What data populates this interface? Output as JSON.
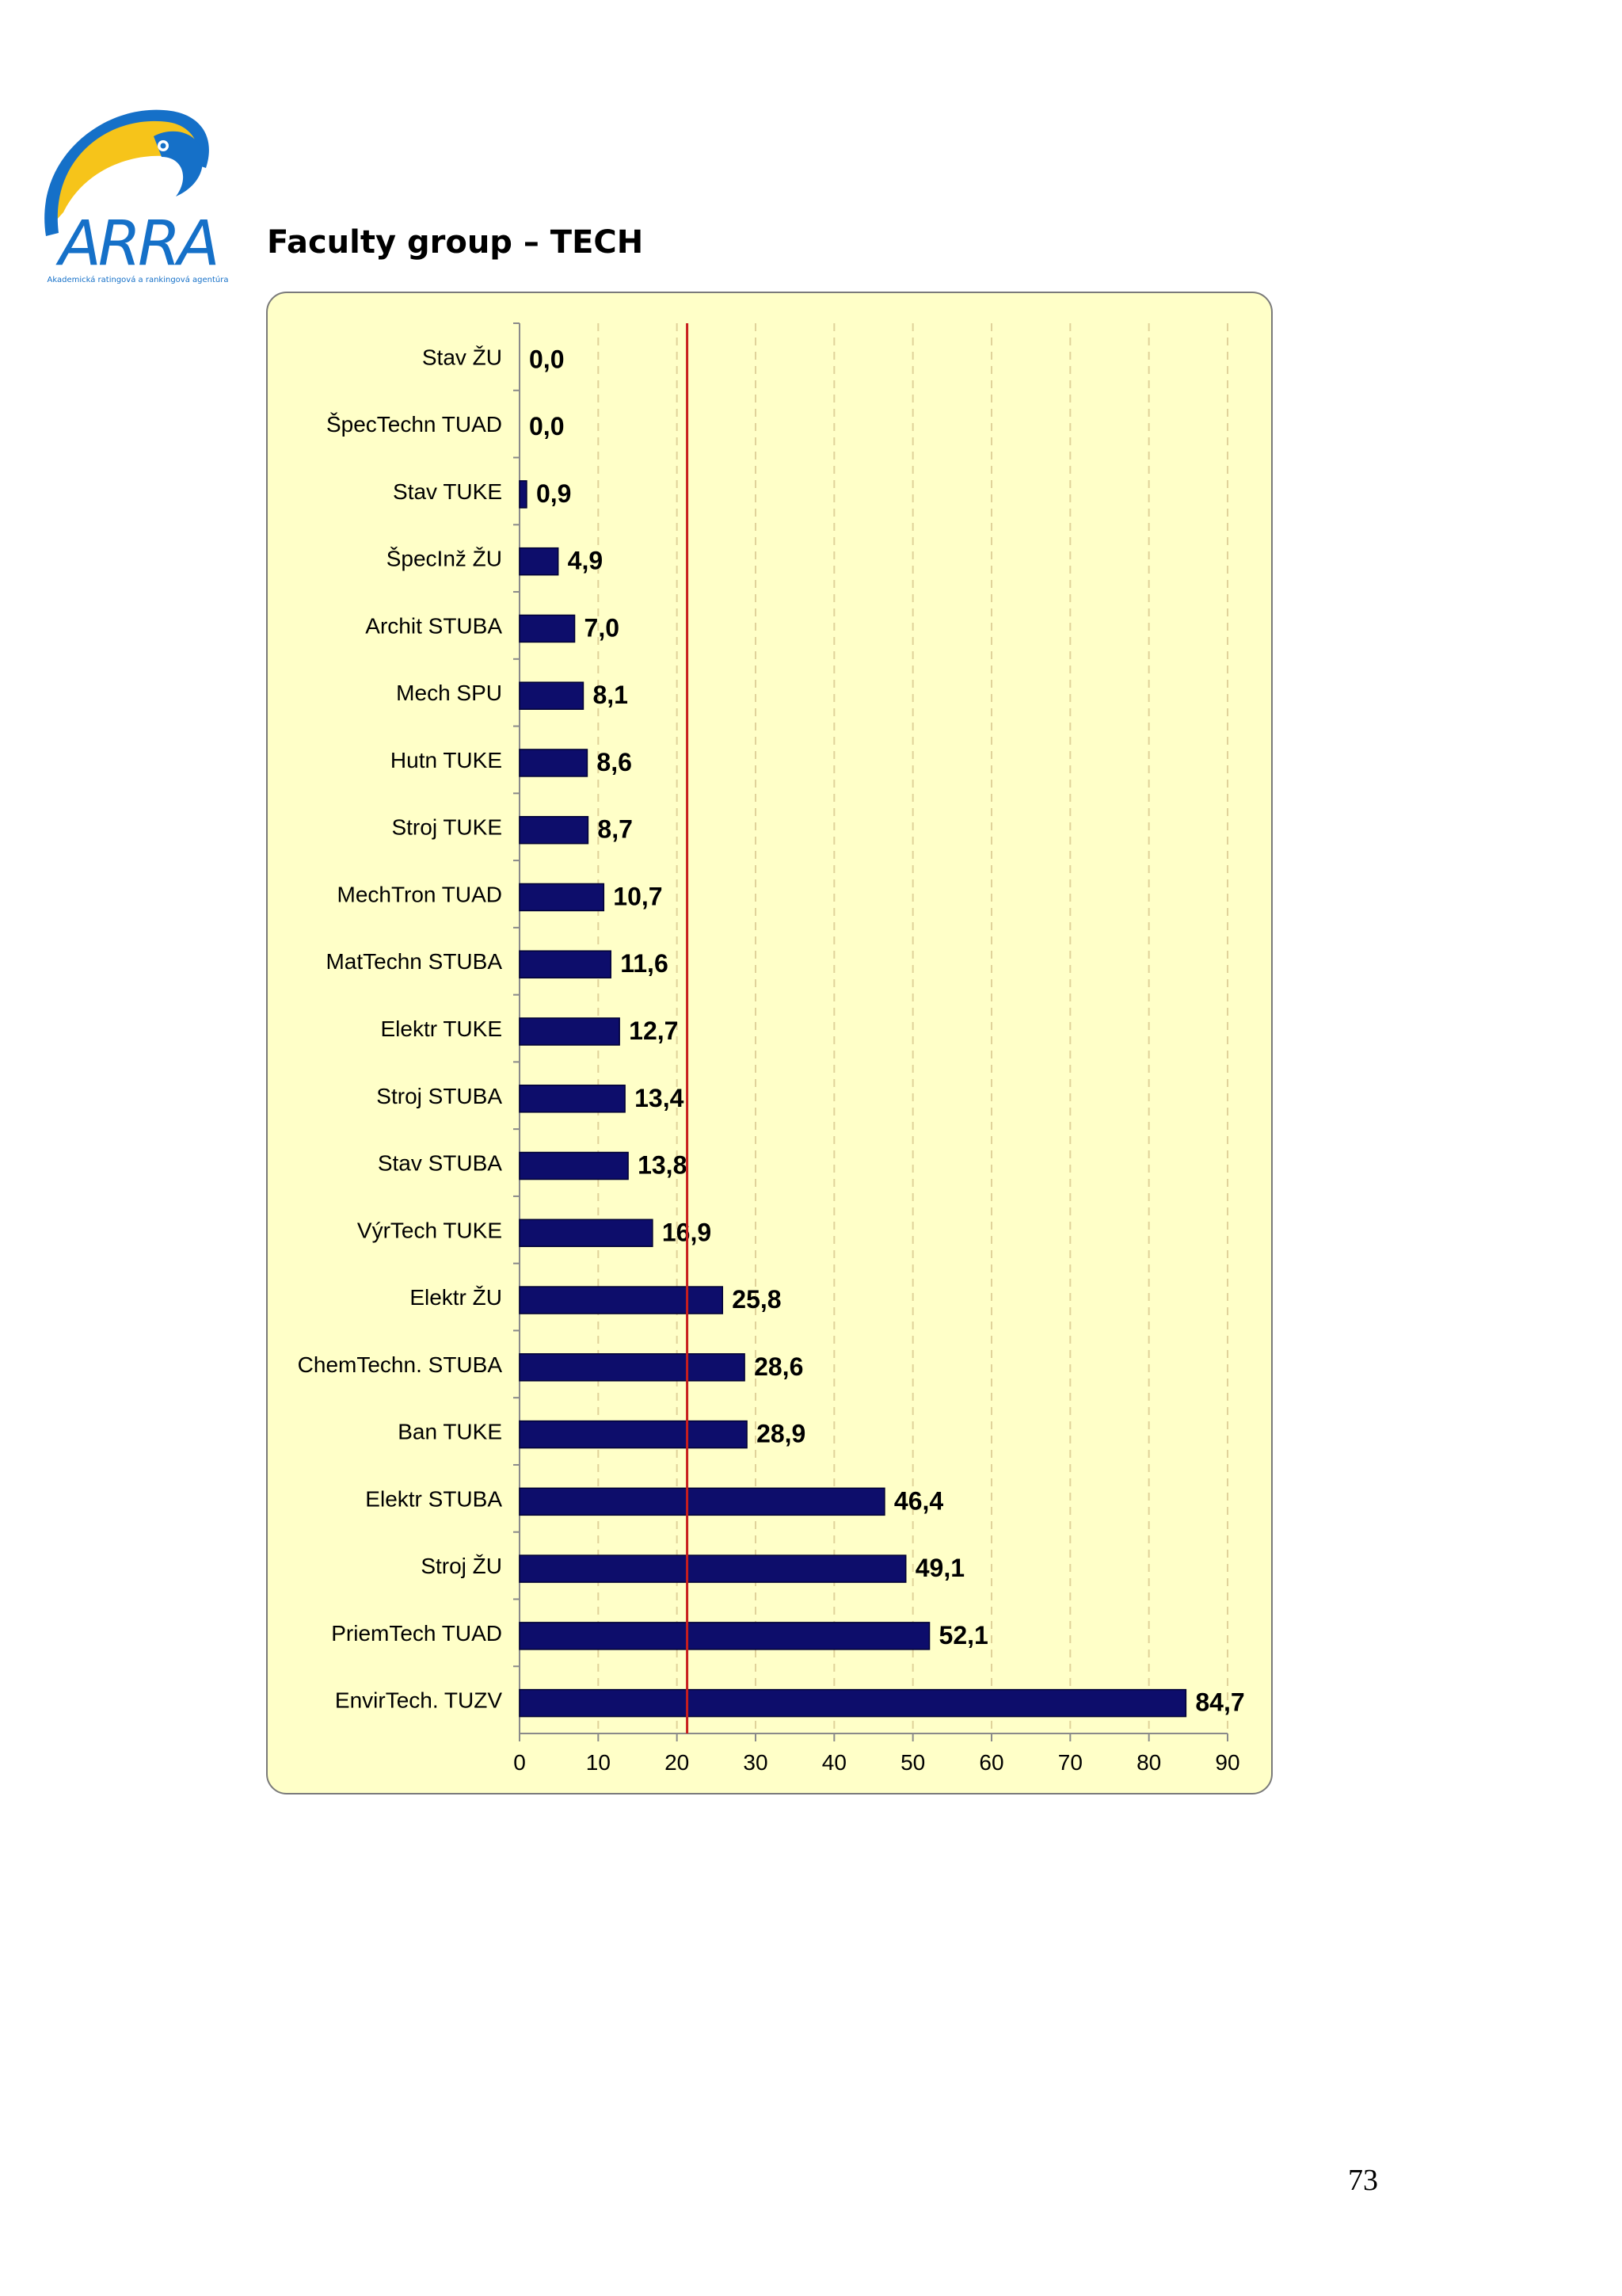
{
  "header": {
    "logo_text": "ARRA",
    "logo_subtitle": "Akademická ratingová a rankingová agentúra",
    "title": "Faculty group – TECH"
  },
  "page": {
    "number": "73"
  },
  "colors": {
    "bar_fill": "#0d0d6b",
    "reference_line": "#c81e1e",
    "plot_background": "#ffffc8",
    "logo_blue": "#1570c8",
    "logo_yellow": "#f6c41a"
  },
  "chart_data": {
    "type": "bar",
    "orientation": "horizontal",
    "categories": [
      "Stav ŽU",
      "ŠpecTechn TUAD",
      "Stav TUKE",
      "ŠpecInž ŽU",
      "Archit STUBA",
      "Mech SPU",
      "Hutn TUKE",
      "Stroj TUKE",
      "MechTron TUAD",
      "MatTechn STUBA",
      "Elektr TUKE",
      "Stroj STUBA",
      "Stav STUBA",
      "VýrTech TUKE",
      "Elektr ŽU",
      "ChemTechn. STUBA",
      "Ban TUKE",
      "Elektr STUBA",
      "Stroj ŽU",
      "PriemTech TUAD",
      "EnvirTech. TUZV"
    ],
    "values": [
      0.0,
      0.0,
      0.9,
      4.9,
      7.0,
      8.1,
      8.6,
      8.7,
      10.7,
      11.6,
      12.7,
      13.4,
      13.8,
      16.9,
      25.8,
      28.6,
      28.9,
      46.4,
      49.1,
      52.1,
      84.7
    ],
    "value_labels": [
      "0,0",
      "0,0",
      "0,9",
      "4,9",
      "7,0",
      "8,1",
      "8,6",
      "8,7",
      "10,7",
      "11,6",
      "12,7",
      "13,4",
      "13,8",
      "16,9",
      "25,8",
      "28,6",
      "28,9",
      "46,4",
      "49,1",
      "52,1",
      "84,7"
    ],
    "x_ticks": [
      0,
      10,
      20,
      30,
      40,
      50,
      60,
      70,
      80,
      90
    ],
    "xlim": [
      0,
      90
    ],
    "reference_line_x": 21.3,
    "grid": "vertical dashed",
    "title": "",
    "xlabel": "",
    "ylabel": ""
  }
}
